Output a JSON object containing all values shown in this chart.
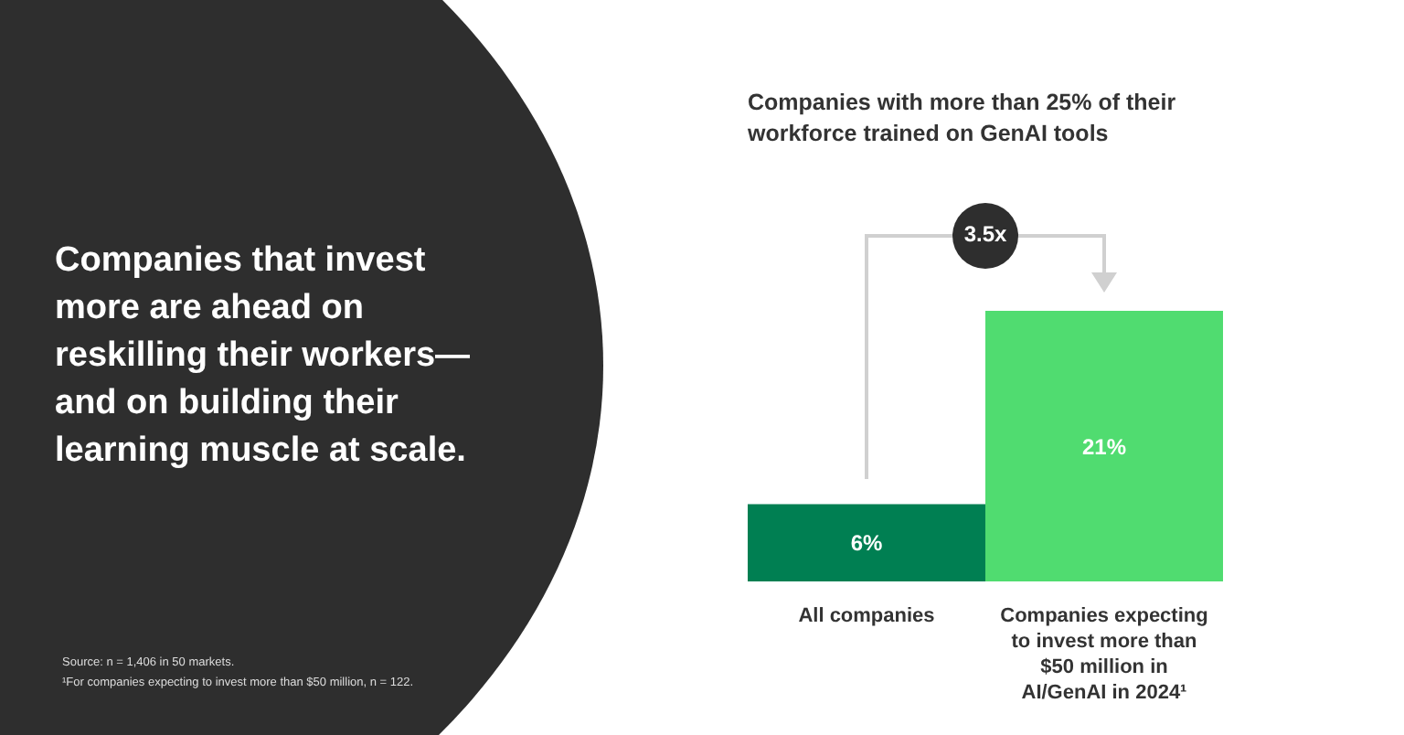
{
  "chart_data": {
    "type": "bar",
    "title": "Companies with more than 25% of their workforce trained on GenAI tools",
    "categories": [
      "All companies",
      "Companies expecting to invest more than $50 million in AI/GenAI in 2024¹"
    ],
    "values": [
      6,
      21
    ],
    "colors": [
      "#007f52",
      "#50dc70"
    ],
    "value_labels": [
      "6%",
      "21%"
    ],
    "grid": false,
    "legend": false,
    "annotations": [
      "Companies that invest more are ahead on reskilling their workers—and on building their learning muscle at scale.",
      "3.5x",
      "Source: n = 1,406 in 50 markets.",
      "¹For companies expecting to invest more than $50 million, n = 122."
    ]
  }
}
